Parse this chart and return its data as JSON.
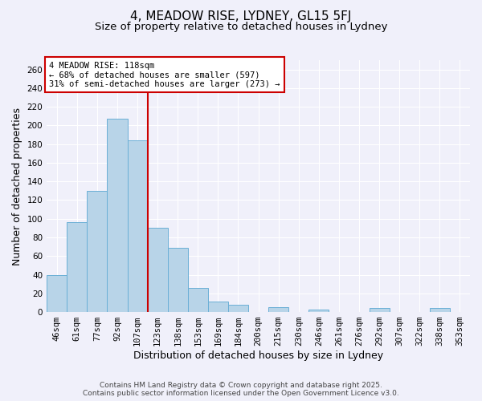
{
  "title": "4, MEADOW RISE, LYDNEY, GL15 5FJ",
  "subtitle": "Size of property relative to detached houses in Lydney",
  "xlabel": "Distribution of detached houses by size in Lydney",
  "ylabel": "Number of detached properties",
  "bar_labels": [
    "46sqm",
    "61sqm",
    "77sqm",
    "92sqm",
    "107sqm",
    "123sqm",
    "138sqm",
    "153sqm",
    "169sqm",
    "184sqm",
    "200sqm",
    "215sqm",
    "230sqm",
    "246sqm",
    "261sqm",
    "276sqm",
    "292sqm",
    "307sqm",
    "322sqm",
    "338sqm",
    "353sqm"
  ],
  "bar_values": [
    40,
    96,
    130,
    207,
    184,
    90,
    69,
    26,
    11,
    8,
    0,
    5,
    0,
    3,
    0,
    0,
    4,
    0,
    0,
    4,
    0
  ],
  "bar_color": "#b8d4e8",
  "bar_edge_color": "#6aafd6",
  "ylim": [
    0,
    270
  ],
  "yticks": [
    0,
    20,
    40,
    60,
    80,
    100,
    120,
    140,
    160,
    180,
    200,
    220,
    240,
    260
  ],
  "property_label": "4 MEADOW RISE: 118sqm",
  "annotation_line1": "← 68% of detached houses are smaller (597)",
  "annotation_line2": "31% of semi-detached houses are larger (273) →",
  "vline_color": "#cc0000",
  "box_color": "#cc0000",
  "background_color": "#f0f0fa",
  "footer_line1": "Contains HM Land Registry data © Crown copyright and database right 2025.",
  "footer_line2": "Contains public sector information licensed under the Open Government Licence v3.0.",
  "title_fontsize": 11,
  "subtitle_fontsize": 9.5,
  "axis_label_fontsize": 9,
  "tick_fontsize": 7.5,
  "annotation_fontsize": 7.5,
  "footer_fontsize": 6.5
}
